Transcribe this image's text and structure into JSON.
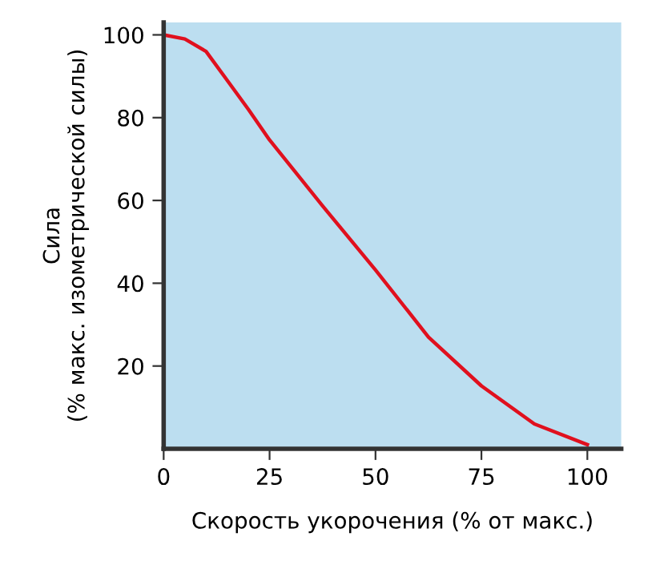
{
  "chart_data": {
    "type": "line",
    "xlabel": "Скорость укорочения (% от макс.)",
    "ylabel": "Сила\n(% макс. изометрической силы)",
    "x": [
      0,
      5,
      10,
      15,
      20,
      25,
      37.5,
      50,
      62.5,
      75,
      87.5,
      100
    ],
    "series": [
      {
        "color": "#e0101e",
        "values": [
          100,
          99,
          96,
          89,
          82,
          74.6,
          58.7,
          43.2,
          27,
          15.2,
          6,
          1
        ]
      }
    ],
    "xlim": [
      0,
      108
    ],
    "ylim": [
      0,
      103
    ],
    "xticks": [
      0,
      25,
      50,
      75,
      100
    ],
    "yticks": [
      20,
      40,
      60,
      80,
      100
    ],
    "grid": false,
    "legend": false,
    "marker": "none",
    "line_style": "solid"
  }
}
